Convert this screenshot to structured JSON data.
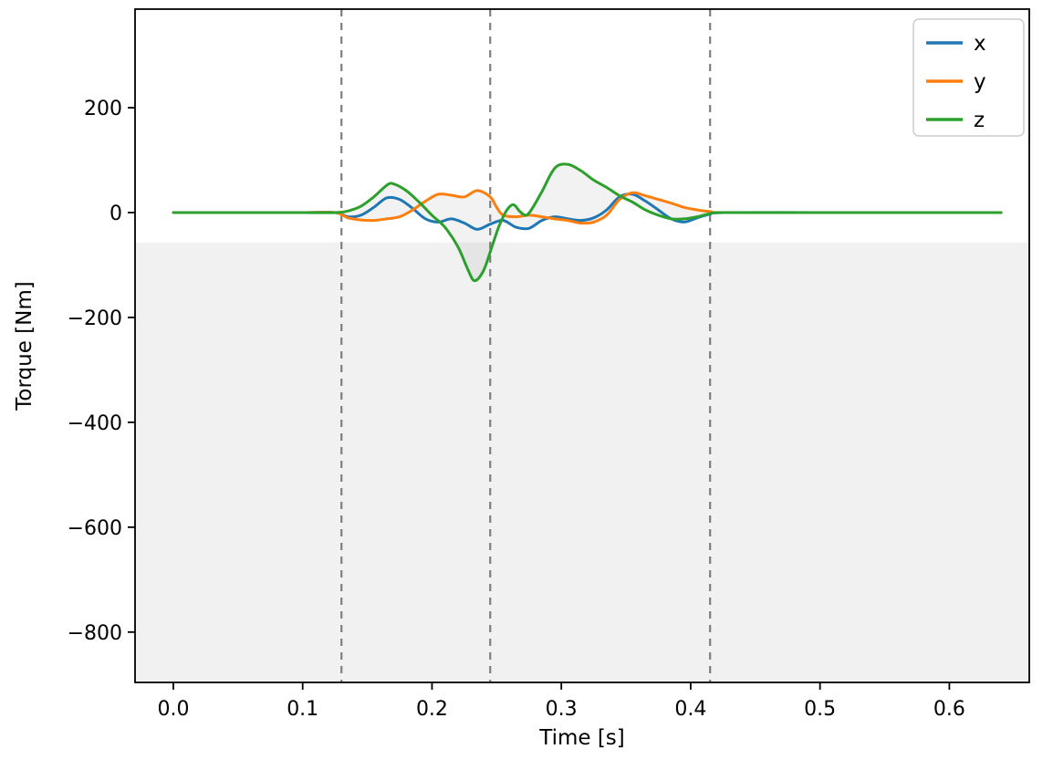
{
  "figure": {
    "xlabel": "Time [s]",
    "ylabel": "Torque [Nm]"
  },
  "chart_data": {
    "type": "line",
    "title": "",
    "xlabel": "Time [s]",
    "ylabel": "Torque [Nm]",
    "xlim": [
      -0.0296,
      0.6618
    ],
    "ylim": [
      -896,
      388
    ],
    "xticks": [
      0.0,
      0.1,
      0.2,
      0.3,
      0.4,
      0.5,
      0.6
    ],
    "yticks": [
      200,
      0,
      -200,
      -400,
      -600,
      -800
    ],
    "grid": false,
    "frame_color": "#000000",
    "tick_font_px": 22,
    "vlines": {
      "positions": [
        0.13,
        0.245,
        0.415
      ],
      "color": "#7f7f7f",
      "style": "dashed"
    },
    "shaded_region": {
      "below_y": -57,
      "color": "#f1f1f1"
    },
    "envelope_fill_color": "rgba(128,128,128,0.10)",
    "legend": {
      "location": "upper right",
      "entries": [
        "x",
        "y",
        "z"
      ]
    },
    "series": [
      {
        "name": "x",
        "color": "#1f77b4",
        "points": [
          [
            0.0,
            0
          ],
          [
            0.05,
            0
          ],
          [
            0.1,
            0
          ],
          [
            0.125,
            0
          ],
          [
            0.135,
            -8
          ],
          [
            0.145,
            -5
          ],
          [
            0.155,
            10
          ],
          [
            0.165,
            28
          ],
          [
            0.175,
            25
          ],
          [
            0.185,
            8
          ],
          [
            0.195,
            -12
          ],
          [
            0.205,
            -18
          ],
          [
            0.215,
            -12
          ],
          [
            0.225,
            -20
          ],
          [
            0.235,
            -32
          ],
          [
            0.245,
            -22
          ],
          [
            0.255,
            -15
          ],
          [
            0.265,
            -28
          ],
          [
            0.275,
            -30
          ],
          [
            0.285,
            -15
          ],
          [
            0.295,
            -8
          ],
          [
            0.305,
            -12
          ],
          [
            0.315,
            -15
          ],
          [
            0.325,
            -10
          ],
          [
            0.335,
            5
          ],
          [
            0.345,
            30
          ],
          [
            0.355,
            35
          ],
          [
            0.365,
            22
          ],
          [
            0.375,
            5
          ],
          [
            0.385,
            -12
          ],
          [
            0.395,
            -18
          ],
          [
            0.405,
            -10
          ],
          [
            0.415,
            -3
          ],
          [
            0.425,
            0
          ],
          [
            0.5,
            0
          ],
          [
            0.57,
            0
          ],
          [
            0.64,
            0
          ]
        ]
      },
      {
        "name": "y",
        "color": "#ff7f0e",
        "points": [
          [
            0.0,
            0
          ],
          [
            0.05,
            0
          ],
          [
            0.1,
            0
          ],
          [
            0.125,
            0
          ],
          [
            0.135,
            -10
          ],
          [
            0.145,
            -14
          ],
          [
            0.155,
            -15
          ],
          [
            0.165,
            -12
          ],
          [
            0.175,
            -8
          ],
          [
            0.185,
            5
          ],
          [
            0.195,
            22
          ],
          [
            0.205,
            35
          ],
          [
            0.215,
            33
          ],
          [
            0.225,
            30
          ],
          [
            0.235,
            42
          ],
          [
            0.245,
            30
          ],
          [
            0.25,
            10
          ],
          [
            0.255,
            -5
          ],
          [
            0.265,
            -8
          ],
          [
            0.275,
            -5
          ],
          [
            0.285,
            -8
          ],
          [
            0.295,
            -12
          ],
          [
            0.305,
            -15
          ],
          [
            0.315,
            -20
          ],
          [
            0.325,
            -18
          ],
          [
            0.335,
            -5
          ],
          [
            0.345,
            25
          ],
          [
            0.355,
            38
          ],
          [
            0.365,
            32
          ],
          [
            0.375,
            25
          ],
          [
            0.385,
            18
          ],
          [
            0.395,
            10
          ],
          [
            0.405,
            5
          ],
          [
            0.415,
            2
          ],
          [
            0.425,
            0
          ],
          [
            0.5,
            0
          ],
          [
            0.57,
            0
          ],
          [
            0.64,
            0
          ]
        ]
      },
      {
        "name": "z",
        "color": "#2ca02c",
        "points": [
          [
            0.0,
            0
          ],
          [
            0.05,
            0
          ],
          [
            0.1,
            0
          ],
          [
            0.125,
            0
          ],
          [
            0.135,
            3
          ],
          [
            0.145,
            12
          ],
          [
            0.155,
            30
          ],
          [
            0.165,
            52
          ],
          [
            0.17,
            55
          ],
          [
            0.18,
            42
          ],
          [
            0.19,
            20
          ],
          [
            0.2,
            -5
          ],
          [
            0.21,
            -28
          ],
          [
            0.22,
            -65
          ],
          [
            0.228,
            -110
          ],
          [
            0.233,
            -130
          ],
          [
            0.24,
            -110
          ],
          [
            0.247,
            -60
          ],
          [
            0.252,
            -25
          ],
          [
            0.258,
            5
          ],
          [
            0.263,
            15
          ],
          [
            0.268,
            2
          ],
          [
            0.273,
            -5
          ],
          [
            0.278,
            10
          ],
          [
            0.285,
            40
          ],
          [
            0.295,
            85
          ],
          [
            0.305,
            92
          ],
          [
            0.315,
            80
          ],
          [
            0.325,
            62
          ],
          [
            0.335,
            48
          ],
          [
            0.345,
            32
          ],
          [
            0.355,
            20
          ],
          [
            0.365,
            5
          ],
          [
            0.375,
            -5
          ],
          [
            0.385,
            -12
          ],
          [
            0.395,
            -12
          ],
          [
            0.405,
            -8
          ],
          [
            0.415,
            -2
          ],
          [
            0.425,
            0
          ],
          [
            0.5,
            0
          ],
          [
            0.57,
            0
          ],
          [
            0.64,
            0
          ]
        ]
      }
    ]
  }
}
